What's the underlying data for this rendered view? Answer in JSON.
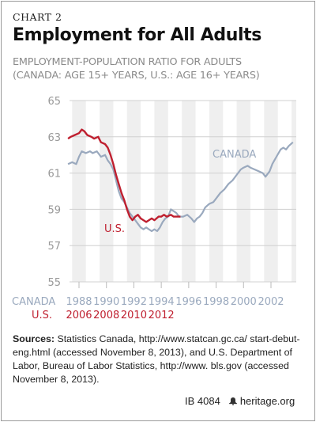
{
  "header": {
    "chart_number": "CHART 2",
    "title": "Employment for All Adults",
    "subtitle_line1": "EMPLOYMENT-POPULATION RATIO FOR ADULTS",
    "subtitle_line2": "(CANADA: AGE 15+ YEARS, U.S.: AGE 16+ YEARS)"
  },
  "chart_data": {
    "type": "line",
    "ylim": [
      55,
      65
    ],
    "yticks": [
      55,
      57,
      59,
      61,
      63,
      65
    ],
    "grid": true,
    "x_axis_canada": {
      "label": "CANADA",
      "ticks": [
        "1988",
        "1990",
        "1992",
        "1994",
        "1996",
        "1998",
        "2000",
        "2002"
      ],
      "range": [
        1987.2,
        2003.6
      ]
    },
    "x_axis_us": {
      "label": "U.S.",
      "ticks": [
        "2006",
        "2008",
        "2010",
        "2012"
      ],
      "range": [
        2005.2,
        2013.4
      ]
    },
    "series": [
      {
        "name": "CANADA",
        "color": "#9aa9be",
        "axis": "canada",
        "points": [
          [
            1987.2,
            61.5
          ],
          [
            1987.5,
            61.6
          ],
          [
            1987.8,
            61.5
          ],
          [
            1988.0,
            61.9
          ],
          [
            1988.2,
            62.2
          ],
          [
            1988.5,
            62.1
          ],
          [
            1988.8,
            62.2
          ],
          [
            1989.0,
            62.1
          ],
          [
            1989.3,
            62.2
          ],
          [
            1989.6,
            61.9
          ],
          [
            1989.9,
            62.0
          ],
          [
            1990.1,
            61.7
          ],
          [
            1990.3,
            61.5
          ],
          [
            1990.5,
            61.2
          ],
          [
            1990.7,
            60.6
          ],
          [
            1990.9,
            60.0
          ],
          [
            1991.1,
            59.6
          ],
          [
            1991.3,
            59.4
          ],
          [
            1991.5,
            59.1
          ],
          [
            1991.7,
            58.8
          ],
          [
            1991.9,
            58.6
          ],
          [
            1992.1,
            58.4
          ],
          [
            1992.3,
            58.2
          ],
          [
            1992.5,
            58.0
          ],
          [
            1992.7,
            57.9
          ],
          [
            1992.9,
            58.0
          ],
          [
            1993.1,
            57.9
          ],
          [
            1993.3,
            57.8
          ],
          [
            1993.5,
            57.9
          ],
          [
            1993.7,
            57.8
          ],
          [
            1993.9,
            58.0
          ],
          [
            1994.1,
            58.3
          ],
          [
            1994.3,
            58.5
          ],
          [
            1994.5,
            58.6
          ],
          [
            1994.7,
            59.0
          ],
          [
            1994.9,
            58.9
          ],
          [
            1995.1,
            58.8
          ],
          [
            1995.3,
            58.6
          ],
          [
            1995.6,
            58.6
          ],
          [
            1995.9,
            58.7
          ],
          [
            1996.2,
            58.5
          ],
          [
            1996.4,
            58.3
          ],
          [
            1996.6,
            58.5
          ],
          [
            1996.8,
            58.6
          ],
          [
            1997.0,
            58.8
          ],
          [
            1997.2,
            59.1
          ],
          [
            1997.5,
            59.3
          ],
          [
            1997.8,
            59.4
          ],
          [
            1998.0,
            59.6
          ],
          [
            1998.3,
            59.9
          ],
          [
            1998.6,
            60.1
          ],
          [
            1998.9,
            60.4
          ],
          [
            1999.2,
            60.6
          ],
          [
            1999.5,
            60.9
          ],
          [
            1999.8,
            61.2
          ],
          [
            2000.0,
            61.3
          ],
          [
            2000.3,
            61.4
          ],
          [
            2000.5,
            61.3
          ],
          [
            2000.8,
            61.2
          ],
          [
            2001.1,
            61.1
          ],
          [
            2001.4,
            61.0
          ],
          [
            2001.6,
            60.8
          ],
          [
            2001.9,
            61.1
          ],
          [
            2002.1,
            61.5
          ],
          [
            2002.4,
            61.9
          ],
          [
            2002.7,
            62.3
          ],
          [
            2002.9,
            62.4
          ],
          [
            2003.1,
            62.3
          ],
          [
            2003.3,
            62.5
          ],
          [
            2003.6,
            62.7
          ]
        ]
      },
      {
        "name": "U.S.",
        "color": "#bf1f2f",
        "axis": "us",
        "points": [
          [
            2005.2,
            62.9
          ],
          [
            2005.4,
            63.0
          ],
          [
            2005.7,
            63.1
          ],
          [
            2006.0,
            63.2
          ],
          [
            2006.2,
            63.4
          ],
          [
            2006.4,
            63.3
          ],
          [
            2006.6,
            63.1
          ],
          [
            2006.9,
            63.0
          ],
          [
            2007.1,
            62.9
          ],
          [
            2007.4,
            63.0
          ],
          [
            2007.6,
            62.7
          ],
          [
            2007.9,
            62.6
          ],
          [
            2008.1,
            62.4
          ],
          [
            2008.3,
            62.0
          ],
          [
            2008.5,
            61.5
          ],
          [
            2008.7,
            60.9
          ],
          [
            2008.9,
            60.4
          ],
          [
            2009.1,
            59.9
          ],
          [
            2009.3,
            59.5
          ],
          [
            2009.5,
            59.0
          ],
          [
            2009.7,
            58.6
          ],
          [
            2009.9,
            58.4
          ],
          [
            2010.1,
            58.6
          ],
          [
            2010.3,
            58.7
          ],
          [
            2010.5,
            58.5
          ],
          [
            2010.7,
            58.4
          ],
          [
            2010.9,
            58.3
          ],
          [
            2011.1,
            58.4
          ],
          [
            2011.3,
            58.5
          ],
          [
            2011.5,
            58.4
          ],
          [
            2011.8,
            58.6
          ],
          [
            2012.0,
            58.6
          ],
          [
            2012.2,
            58.7
          ],
          [
            2012.4,
            58.6
          ],
          [
            2012.7,
            58.7
          ],
          [
            2012.9,
            58.6
          ],
          [
            2013.1,
            58.6
          ],
          [
            2013.4,
            58.6
          ]
        ]
      }
    ],
    "annotations": [
      {
        "text": "CANADA",
        "series": "CANADA"
      },
      {
        "text": "U.S.",
        "series": "U.S."
      }
    ]
  },
  "sources": {
    "label": "Sources:",
    "text": " Statistics Canada, http://www.statcan.gc.ca/ start-debut-eng.html (accessed November 8, 2013), and U.S. Department of Labor, Bureau of Labor Statistics, http://www. bls.gov (accessed November 8, 2013)."
  },
  "footer": {
    "id": "IB 4084",
    "site": "heritage.org",
    "icon": "bell-icon"
  }
}
